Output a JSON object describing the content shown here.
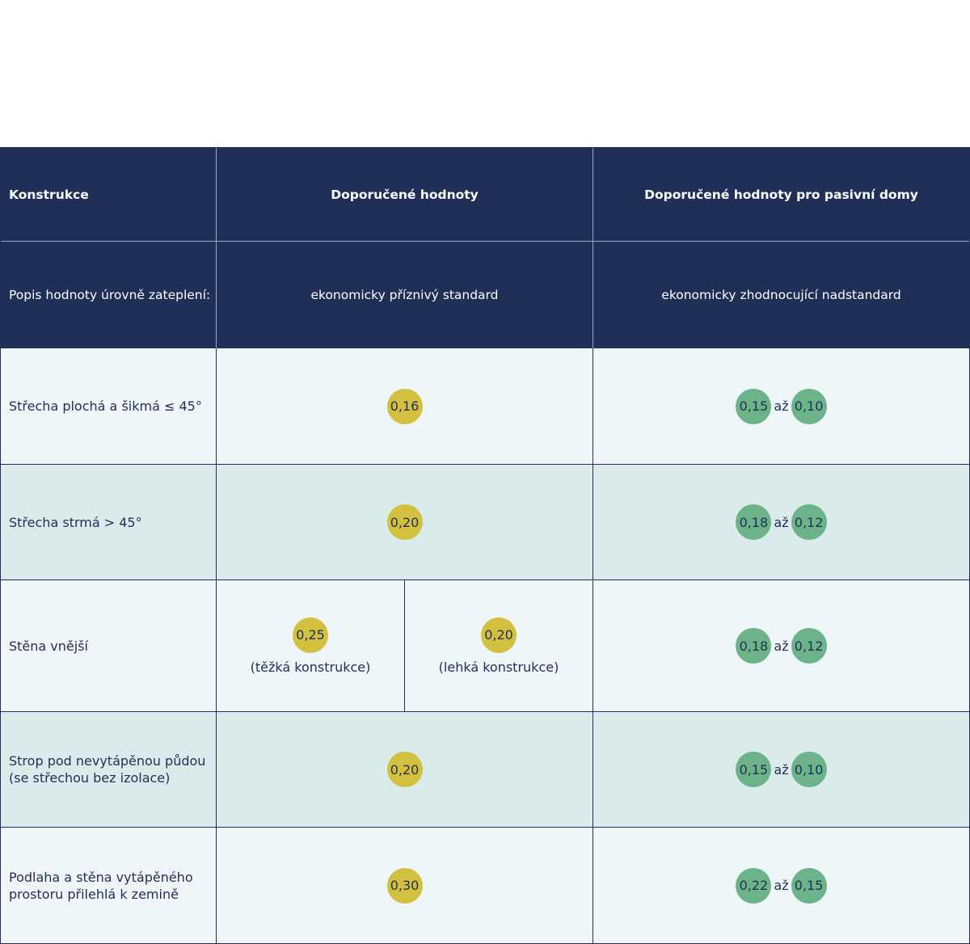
{
  "header": {
    "col1_title": "Konstrukce",
    "col2_title": "Doporučené hodnoty",
    "col3_title": "Doporučené hodnoty pro pasivní domy",
    "desc_label": "Popis hodnoty úrovně zateplení:",
    "col2_desc": "ekonomicky příznivý standard",
    "col3_desc": "ekonomicky zhodnocující nadstandard"
  },
  "connector": "až",
  "rows": [
    {
      "label": "Střecha plochá a šikmá ≤ 45°",
      "recommended": "0,16",
      "passive_from": "0,15",
      "passive_to": "0,10"
    },
    {
      "label": "Střecha strmá > 45°",
      "recommended": "0,20",
      "passive_from": "0,18",
      "passive_to": "0,12"
    },
    {
      "label": "Stěna vnější",
      "recommended_heavy": "0,25",
      "heavy_note": "(těžká konstrukce)",
      "recommended_light": "0,20",
      "light_note": "(lehká konstrukce)",
      "passive_from": "0,18",
      "passive_to": "0,12"
    },
    {
      "label_line1": "Strop pod nevytápěnou půdou",
      "label_line2": "(se střechou bez izolace)",
      "recommended": "0,20",
      "passive_from": "0,15",
      "passive_to": "0,10"
    },
    {
      "label_line1": "Podlaha a stěna vytápěného",
      "label_line2": "prostoru přilehlá k zemině",
      "recommended": "0,30",
      "passive_from": "0,22",
      "passive_to": "0,15"
    }
  ],
  "colors": {
    "header_bg": "#1f2f57",
    "row_light": "#eef6f7",
    "row_mid": "#d9ebeb",
    "badge_recommended": "#d4c03f",
    "badge_passive": "#6db38a"
  }
}
